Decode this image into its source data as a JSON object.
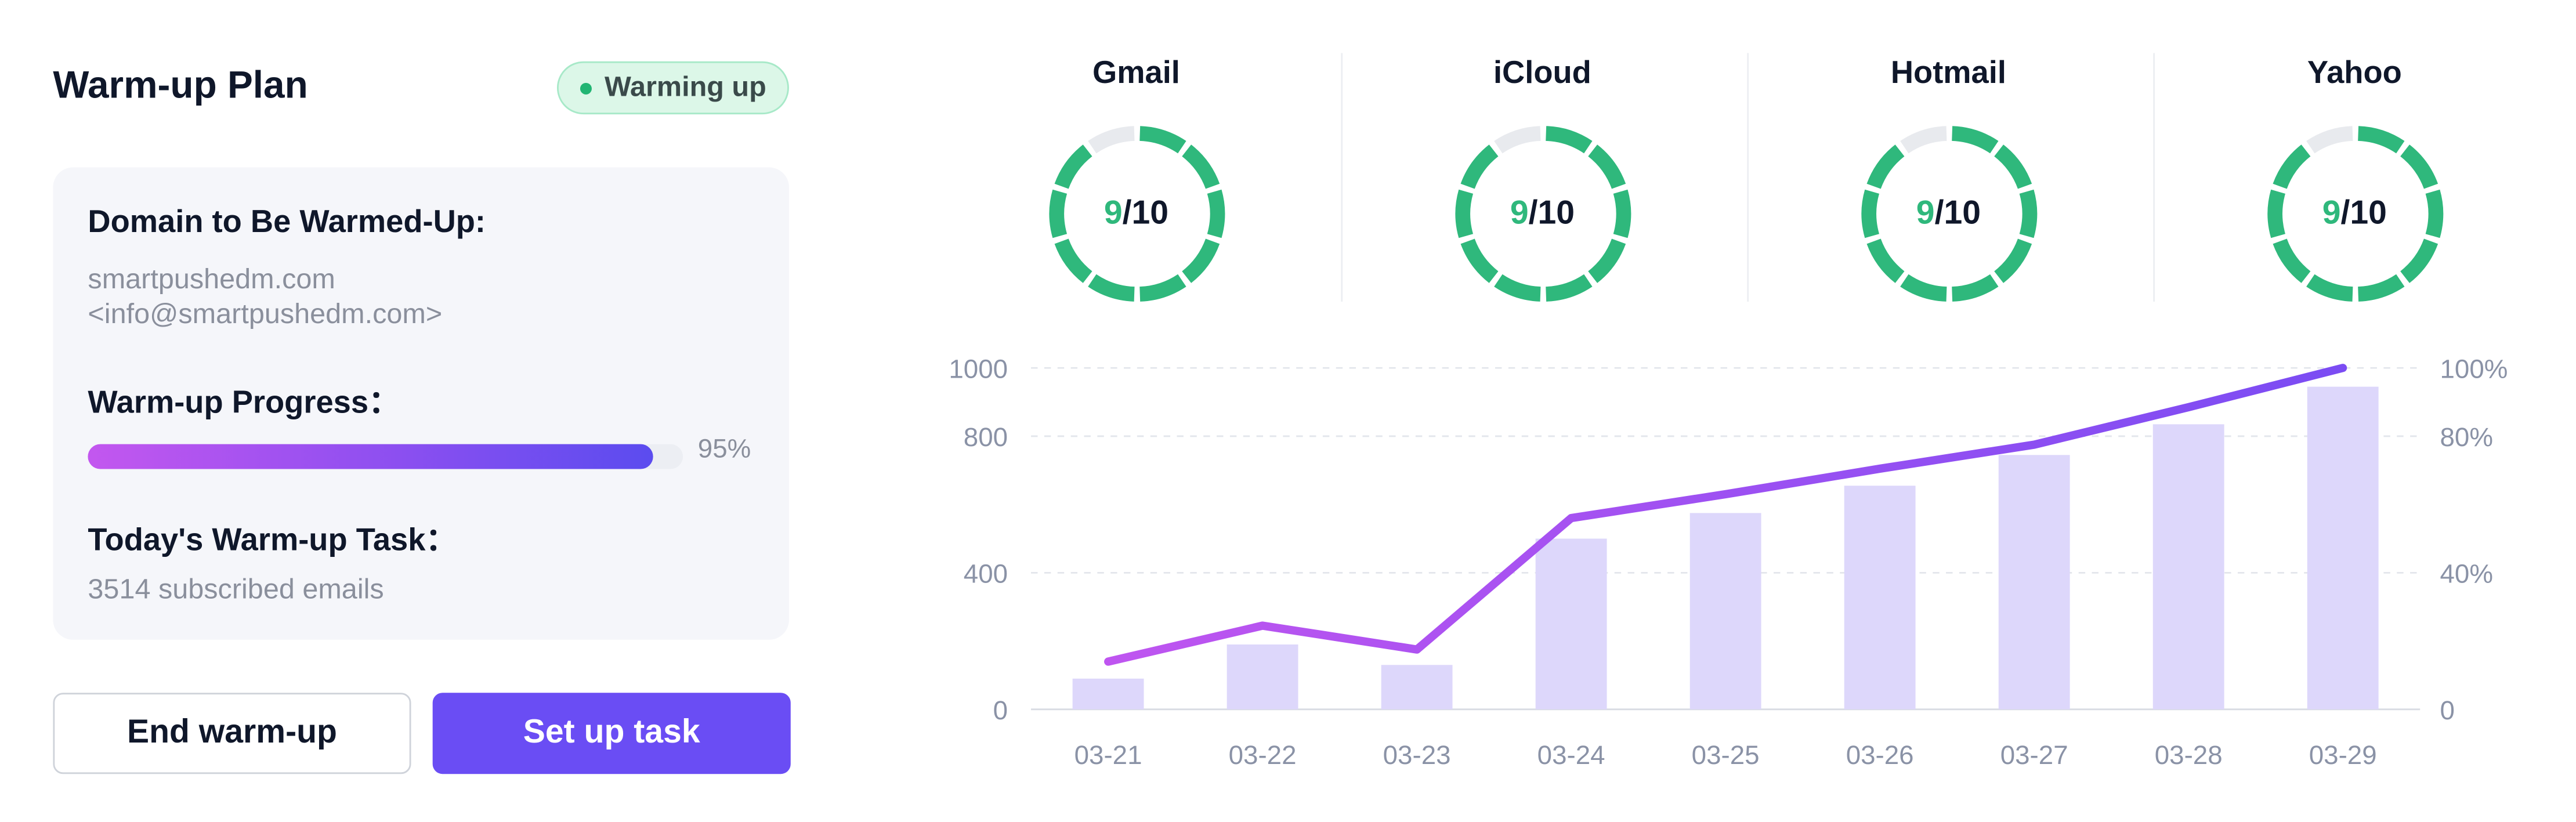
{
  "plan": {
    "title": "Warm-up Plan",
    "status": "Warming up",
    "domain_label": "Domain to Be Warmed-Up:",
    "domain": "smartpushedm.com",
    "sender": "<info@smartpushedm.com>",
    "progress_label": "Warm-up Progress：",
    "progress": 0.95,
    "progress_text": "95%",
    "task_label": "Today's Warm-up Task：",
    "task_value": "3514 subscribed emails"
  },
  "buttons": {
    "end": "End warm-up",
    "setup": "Set up task"
  },
  "providers": [
    {
      "name": "Gmail",
      "score": "9",
      "total": "/10",
      "value": 9,
      "max": 10
    },
    {
      "name": "iCloud",
      "score": "9",
      "total": "/10",
      "value": 9,
      "max": 10
    },
    {
      "name": "Hotmail",
      "score": "9",
      "total": "/10",
      "value": 9,
      "max": 10
    },
    {
      "name": "Yahoo",
      "score": "9",
      "total": "/10",
      "value": 9,
      "max": 10
    }
  ],
  "colors": {
    "ring_active": "#2fb87c",
    "ring_inactive": "#e8eaee",
    "bar": "#ddd7fb",
    "line": "#8a4ff3",
    "accent": "#6a4df4"
  },
  "chart_data": {
    "type": "bar",
    "categories": [
      "03-21",
      "03-22",
      "03-23",
      "03-24",
      "03-25",
      "03-26",
      "03-27",
      "03-28",
      "03-29"
    ],
    "series": [
      {
        "type": "bar",
        "axis": "left",
        "values": [
          90,
          190,
          130,
          500,
          575,
          655,
          745,
          835,
          945
        ]
      },
      {
        "type": "line",
        "axis": "right",
        "values": [
          14,
          24.5,
          17.5,
          56,
          63,
          70.5,
          77.5,
          88.5,
          100
        ]
      }
    ],
    "y_left": {
      "ticks": [
        0,
        400,
        800,
        1000
      ],
      "tick_labels": [
        "0",
        "400",
        "800",
        "1000"
      ]
    },
    "y_right": {
      "ticks": [
        0,
        40,
        80,
        100
      ],
      "tick_labels": [
        "0",
        "40%",
        "80%",
        "100%"
      ]
    },
    "grid": "dashed horizontal"
  }
}
